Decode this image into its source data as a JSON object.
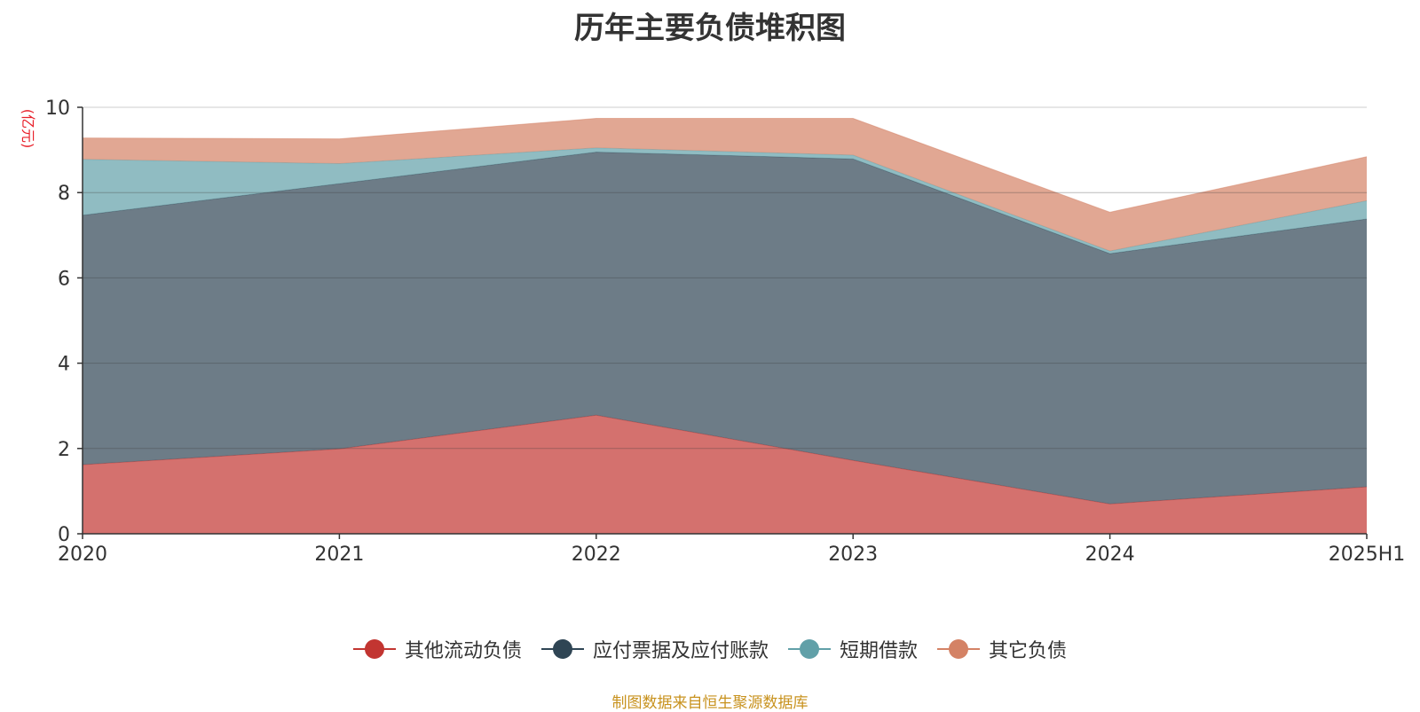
{
  "chart_data": {
    "type": "area",
    "stacked": true,
    "title": "历年主要负债堆积图",
    "ylabel": "(亿元)",
    "xlabel": "",
    "categories": [
      "2020",
      "2021",
      "2022",
      "2023",
      "2024",
      "2025H1"
    ],
    "ylim": [
      0,
      10
    ],
    "yticks": [
      0,
      2,
      4,
      6,
      8,
      10
    ],
    "grid": true,
    "legend_position": "bottom",
    "series": [
      {
        "name": "其他流动负债",
        "color": "#c23531",
        "values": [
          1.62,
          1.99,
          2.78,
          1.72,
          0.7,
          1.1
        ]
      },
      {
        "name": "应付票据及应付账款",
        "color": "#2f4554",
        "values": [
          5.85,
          6.22,
          6.17,
          7.07,
          5.87,
          6.28
        ]
      },
      {
        "name": "短期借款",
        "color": "#61a0a8",
        "values": [
          1.31,
          0.47,
          0.1,
          0.09,
          0.06,
          0.43
        ]
      },
      {
        "name": "其它负债",
        "color": "#d48265",
        "values": [
          0.5,
          0.58,
          0.69,
          0.86,
          0.91,
          1.03
        ]
      }
    ],
    "source_note": "制图数据来自恒生聚源数据库"
  }
}
